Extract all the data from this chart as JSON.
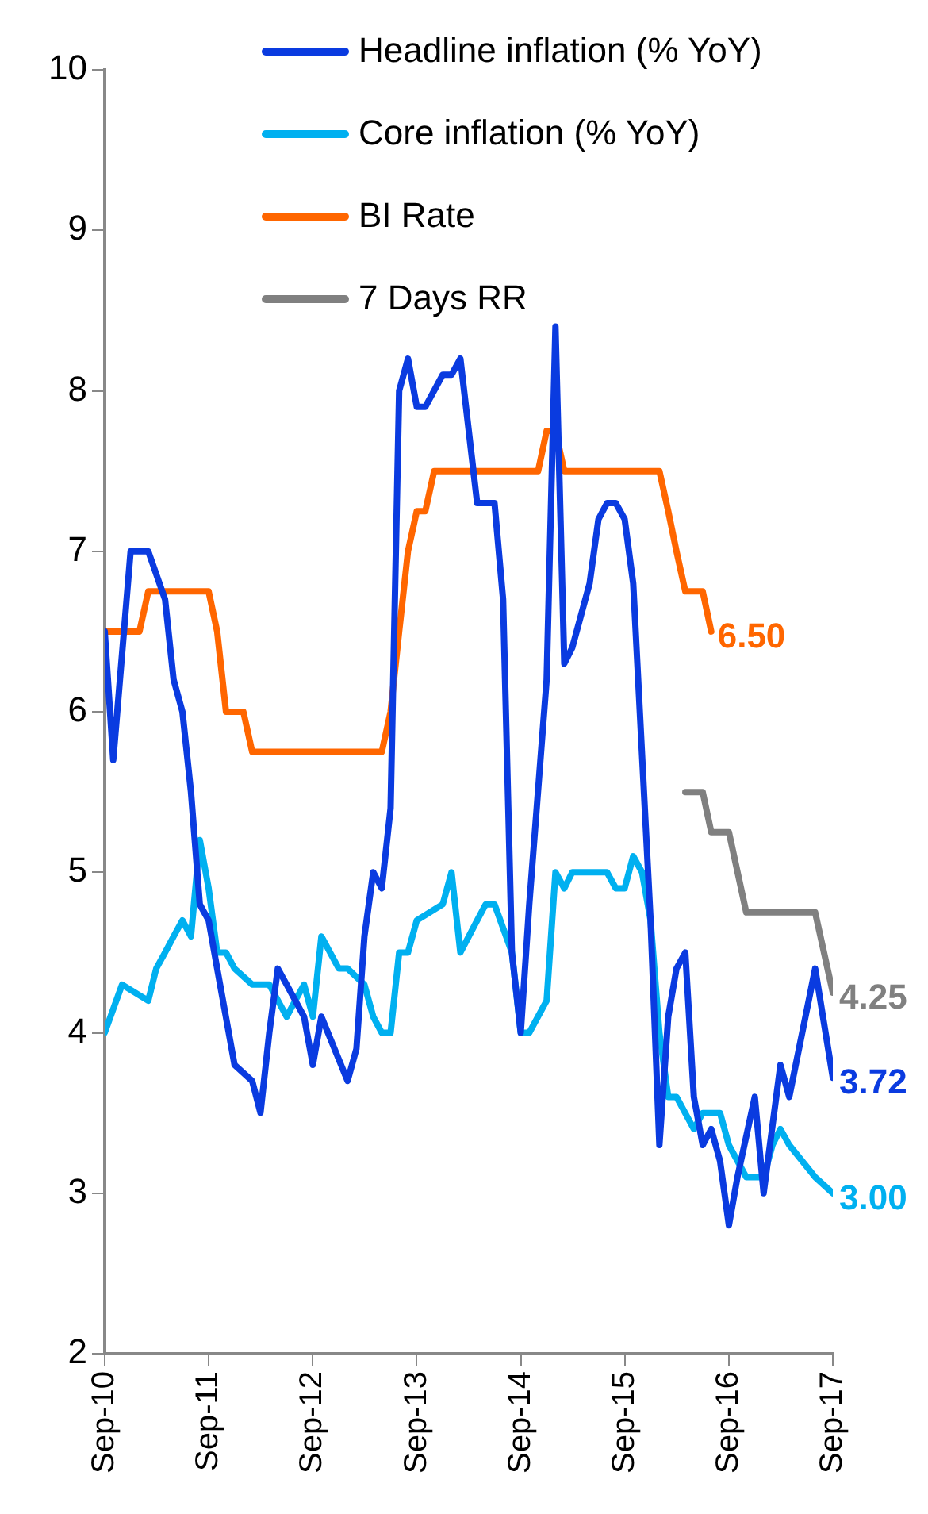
{
  "chart_data": {
    "type": "line",
    "xlim": [
      "2010-09",
      "2017-09"
    ],
    "xticks": [
      {
        "value": "2010-09",
        "label": "Sep-10"
      },
      {
        "value": "2011-09",
        "label": "Sep-11"
      },
      {
        "value": "2012-09",
        "label": "Sep-12"
      },
      {
        "value": "2013-09",
        "label": "Sep-13"
      },
      {
        "value": "2014-09",
        "label": "Sep-14"
      },
      {
        "value": "2015-09",
        "label": "Sep-15"
      },
      {
        "value": "2016-09",
        "label": "Sep-16"
      },
      {
        "value": "2017-09",
        "label": "Sep-17"
      }
    ],
    "ylim": [
      2,
      10
    ],
    "yticks": [
      2,
      3,
      4,
      5,
      6,
      7,
      8,
      9,
      10
    ],
    "legend": "top",
    "series": [
      {
        "name": "Headline inflation (% YoY)",
        "color": "#0a3be0",
        "x": [
          "2010-09",
          "2010-10",
          "2010-12",
          "2011-02",
          "2011-04",
          "2011-05",
          "2011-06",
          "2011-07",
          "2011-08",
          "2011-09",
          "2011-10",
          "2011-12",
          "2012-02",
          "2012-03",
          "2012-04",
          "2012-05",
          "2012-06",
          "2012-08",
          "2012-09",
          "2012-10",
          "2013-01",
          "2013-02",
          "2013-03",
          "2013-04",
          "2013-05",
          "2013-06",
          "2013-07",
          "2013-08",
          "2013-09",
          "2013-10",
          "2013-12",
          "2014-01",
          "2014-02",
          "2014-04",
          "2014-05",
          "2014-06",
          "2014-07",
          "2014-08",
          "2014-09",
          "2014-10",
          "2014-12",
          "2015-01",
          "2015-02",
          "2015-03",
          "2015-05",
          "2015-06",
          "2015-07",
          "2015-08",
          "2015-09",
          "2015-10",
          "2015-12",
          "2016-01",
          "2016-02",
          "2016-03",
          "2016-04",
          "2016-05",
          "2016-06",
          "2016-07",
          "2016-08",
          "2016-09",
          "2016-10",
          "2016-12",
          "2017-01",
          "2017-03",
          "2017-04",
          "2017-07",
          "2017-09"
        ],
        "values": [
          6.5,
          5.7,
          7.0,
          7.0,
          6.7,
          6.2,
          6.0,
          5.5,
          4.8,
          4.7,
          4.4,
          3.8,
          3.7,
          3.5,
          4.0,
          4.4,
          4.3,
          4.1,
          3.8,
          4.1,
          3.7,
          3.9,
          4.6,
          5.0,
          4.9,
          5.4,
          8.0,
          8.2,
          7.9,
          7.9,
          8.1,
          8.1,
          8.2,
          7.3,
          7.3,
          7.3,
          6.7,
          4.5,
          4.0,
          4.8,
          6.2,
          8.4,
          6.3,
          6.4,
          6.8,
          7.2,
          7.3,
          7.3,
          7.2,
          6.8,
          4.7,
          3.3,
          4.1,
          4.4,
          4.5,
          3.6,
          3.3,
          3.4,
          3.2,
          2.8,
          3.1,
          3.6,
          3.0,
          3.8,
          3.6,
          4.4,
          3.72
        ],
        "value_labels": [
          null,
          null,
          null,
          null,
          null,
          null,
          null,
          null,
          null,
          null,
          null,
          null,
          null,
          null,
          null,
          null,
          null,
          null,
          null,
          null,
          null,
          null,
          null,
          null,
          null,
          null,
          null,
          null,
          null,
          null,
          null,
          null,
          null,
          null,
          null,
          null,
          null,
          null,
          null,
          null,
          null,
          null,
          null,
          null,
          null,
          null,
          null,
          null,
          null,
          null,
          null,
          null,
          null,
          null,
          null,
          null,
          null,
          null,
          null,
          null,
          null,
          null,
          null,
          null,
          null,
          null,
          "3.72"
        ]
      },
      {
        "name": "Core inflation (% YoY)",
        "color": "#00b0f0",
        "x": [
          "2010-09",
          "2010-11",
          "2011-02",
          "2011-03",
          "2011-04",
          "2011-05",
          "2011-06",
          "2011-07",
          "2011-08",
          "2011-09",
          "2011-10",
          "2011-11",
          "2011-12",
          "2012-02",
          "2012-04",
          "2012-06",
          "2012-07",
          "2012-08",
          "2012-09",
          "2012-10",
          "2012-12",
          "2013-01",
          "2013-03",
          "2013-04",
          "2013-05",
          "2013-06",
          "2013-07",
          "2013-08",
          "2013-09",
          "2013-12",
          "2014-01",
          "2014-02",
          "2014-04",
          "2014-05",
          "2014-06",
          "2014-08",
          "2014-09",
          "2014-10",
          "2014-12",
          "2015-01",
          "2015-02",
          "2015-03",
          "2015-07",
          "2015-08",
          "2015-09",
          "2015-10",
          "2015-11",
          "2015-12",
          "2016-01",
          "2016-02",
          "2016-03",
          "2016-05",
          "2016-06",
          "2016-08",
          "2016-09",
          "2016-11",
          "2017-01",
          "2017-02",
          "2017-03",
          "2017-04",
          "2017-07",
          "2017-09"
        ],
        "values": [
          4.0,
          4.3,
          4.2,
          4.4,
          4.5,
          4.6,
          4.7,
          4.6,
          5.2,
          4.9,
          4.5,
          4.5,
          4.4,
          4.3,
          4.3,
          4.1,
          4.2,
          4.3,
          4.1,
          4.6,
          4.4,
          4.4,
          4.3,
          4.1,
          4.0,
          4.0,
          4.5,
          4.5,
          4.7,
          4.8,
          5.0,
          4.5,
          4.7,
          4.8,
          4.8,
          4.5,
          4.0,
          4.0,
          4.2,
          5.0,
          4.9,
          5.0,
          5.0,
          4.9,
          4.9,
          5.1,
          5.0,
          4.7,
          4.0,
          3.6,
          3.6,
          3.4,
          3.5,
          3.5,
          3.3,
          3.1,
          3.1,
          3.3,
          3.4,
          3.3,
          3.1,
          3.0
        ],
        "value_labels": [
          null,
          null,
          null,
          null,
          null,
          null,
          null,
          null,
          null,
          null,
          null,
          null,
          null,
          null,
          null,
          null,
          null,
          null,
          null,
          null,
          null,
          null,
          null,
          null,
          null,
          null,
          null,
          null,
          null,
          null,
          null,
          null,
          null,
          null,
          null,
          null,
          null,
          null,
          null,
          null,
          null,
          null,
          null,
          null,
          null,
          null,
          null,
          null,
          null,
          null,
          null,
          null,
          null,
          null,
          null,
          null,
          null,
          null,
          null,
          null,
          null,
          "3.00"
        ]
      },
      {
        "name": "BI Rate",
        "color": "#ff6600",
        "x": [
          "2010-09",
          "2011-01",
          "2011-02",
          "2011-09",
          "2011-10",
          "2011-11",
          "2012-01",
          "2012-02",
          "2013-05",
          "2013-06",
          "2013-07",
          "2013-08",
          "2013-09",
          "2013-10",
          "2013-11",
          "2014-11",
          "2014-12",
          "2015-01",
          "2015-02",
          "2016-01",
          "2016-02",
          "2016-03",
          "2016-04",
          "2016-06",
          "2016-07"
        ],
        "values": [
          6.5,
          6.5,
          6.75,
          6.75,
          6.5,
          6.0,
          6.0,
          5.75,
          5.75,
          6.0,
          6.5,
          7.0,
          7.25,
          7.25,
          7.5,
          7.5,
          7.75,
          7.75,
          7.5,
          7.5,
          7.25,
          7.0,
          6.75,
          6.75,
          6.5
        ],
        "value_labels": [
          null,
          null,
          null,
          null,
          null,
          null,
          null,
          null,
          null,
          null,
          null,
          null,
          null,
          null,
          null,
          null,
          null,
          null,
          null,
          null,
          null,
          null,
          null,
          null,
          "6.50"
        ]
      },
      {
        "name": "7 Days RR",
        "color": "#808080",
        "x": [
          "2016-04",
          "2016-06",
          "2016-07",
          "2016-09",
          "2016-11",
          "2017-07",
          "2017-09"
        ],
        "values": [
          5.5,
          5.5,
          5.25,
          5.25,
          4.75,
          4.75,
          4.25
        ],
        "value_labels": [
          null,
          null,
          null,
          null,
          null,
          null,
          "4.25"
        ]
      }
    ]
  }
}
